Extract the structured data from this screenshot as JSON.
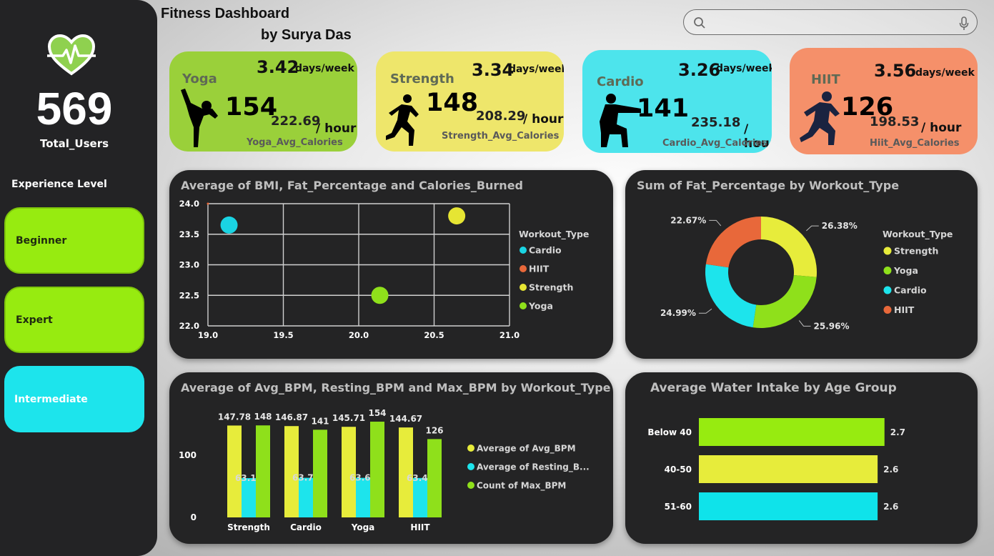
{
  "header": {
    "title": "Fitness Dashboard",
    "author": "by Surya Das",
    "search_placeholder": ""
  },
  "sidebar": {
    "logo_icon": "heart-pulse-icon",
    "total_users_value": "569",
    "total_users_label": "Total_Users",
    "experience_title": "Experience Level",
    "levels": [
      {
        "label": "Beginner",
        "color": "#97eb10"
      },
      {
        "label": "Expert",
        "color": "#97eb10"
      },
      {
        "label": "Intermediate",
        "color": "#1de4ec"
      }
    ]
  },
  "kpis": [
    {
      "name": "Yoga",
      "days": "3.42",
      "days_unit": "days/week",
      "count": "154",
      "calories": "222.69",
      "cal_unit": "/ hour",
      "cal_label": "Yoga_Avg_Calories",
      "color": "#9ad03a",
      "icon": "yoga-pose-icon"
    },
    {
      "name": "Strength",
      "days": "3.34",
      "days_unit": "days/week",
      "count": "148",
      "calories": "208.29",
      "cal_unit": "/ hour",
      "cal_label": "Strength_Avg_Calories",
      "color": "#eee66b",
      "icon": "runner-icon"
    },
    {
      "name": "Cardio",
      "days": "3.26",
      "days_unit": "days/week",
      "count": "141",
      "calories": "235.18",
      "cal_unit": "/ hour",
      "cal_label": "Cardio_Avg_Calories",
      "color": "#4de4ec",
      "icon": "squat-icon"
    },
    {
      "name": "HIIT",
      "days": "3.56",
      "days_unit": "days/week",
      "count": "126",
      "calories": "198.53",
      "cal_unit": "/ hour",
      "cal_label": "Hiit_Avg_Calories",
      "color": "#f5906a",
      "icon": "sprinter-icon"
    }
  ],
  "chart_data": [
    {
      "type": "scatter",
      "title": "Average of BMI, Fat_Percentage and Calories_Burned",
      "xlim": [
        19.0,
        21.0
      ],
      "ylim": [
        22.0,
        24.0
      ],
      "xticks": [
        "19.0",
        "19.5",
        "20.0",
        "20.5",
        "21.0"
      ],
      "yticks": [
        "22.0",
        "22.5",
        "23.0",
        "23.5",
        "24.0"
      ],
      "grid": true,
      "legend_title": "Workout_Type",
      "legend_position": "right",
      "points": [
        {
          "name": "Cardio",
          "x": 19.14,
          "y": 23.65,
          "color": "#1ad4e3"
        },
        {
          "name": "HIIT",
          "x": 19.0,
          "y": 24.0,
          "color": "#e8683a"
        },
        {
          "name": "Strength",
          "x": 20.65,
          "y": 23.8,
          "color": "#e6e533"
        },
        {
          "name": "Yoga",
          "x": 20.14,
          "y": 22.5,
          "color": "#8fe01b"
        }
      ]
    },
    {
      "type": "pie",
      "title": "Sum of Fat_Percentage by Workout_Type",
      "legend_title": "Workout_Type",
      "legend_position": "right",
      "slices": [
        {
          "name": "Strength",
          "value": 26.38,
          "label": "26.38%",
          "color": "#e7ec3b"
        },
        {
          "name": "Yoga",
          "value": 25.96,
          "label": "25.96%",
          "color": "#8fe01b"
        },
        {
          "name": "Cardio",
          "value": 24.99,
          "label": "24.99%",
          "color": "#1de4ec"
        },
        {
          "name": "HIIT",
          "value": 22.67,
          "label": "22.67%",
          "color": "#e8683a"
        }
      ]
    },
    {
      "type": "bar",
      "title": "Average of Avg_BPM, Resting_BPM and Max_BPM by Workout_Type",
      "categories": [
        "Strength",
        "Cardio",
        "Yoga",
        "HIIT"
      ],
      "yticks": [
        "0",
        "100"
      ],
      "ylim": [
        0,
        170
      ],
      "legend_position": "right",
      "series": [
        {
          "name": "Average of Avg_BPM",
          "values": [
            147.78,
            146.87,
            145.71,
            144.67
          ],
          "labels": [
            "147.78",
            "146.87",
            "145.71",
            "144.67"
          ],
          "color": "#e7ec3b"
        },
        {
          "name": "Average of Resting_B...",
          "values": [
            63.18,
            63.7,
            63.64,
            63.4
          ],
          "labels": [
            "63.18",
            "63.70",
            "63.64",
            "63.40"
          ],
          "color": "#1de4ec"
        },
        {
          "name": "Count of Max_BPM",
          "values": [
            148,
            141,
            154,
            126
          ],
          "labels": [
            "148",
            "141",
            "154",
            "126"
          ],
          "color": "#8fe01b"
        }
      ]
    },
    {
      "type": "bar",
      "orientation": "horizontal",
      "title": "Average Water Intake by Age Group",
      "categories": [
        "Below 40",
        "40-50",
        "51-60"
      ],
      "values": [
        2.7,
        2.6,
        2.6
      ],
      "labels": [
        "2.7",
        "2.6",
        "2.6"
      ],
      "colors": [
        "#97eb10",
        "#e7ec3b",
        "#0fe3ea"
      ]
    }
  ]
}
